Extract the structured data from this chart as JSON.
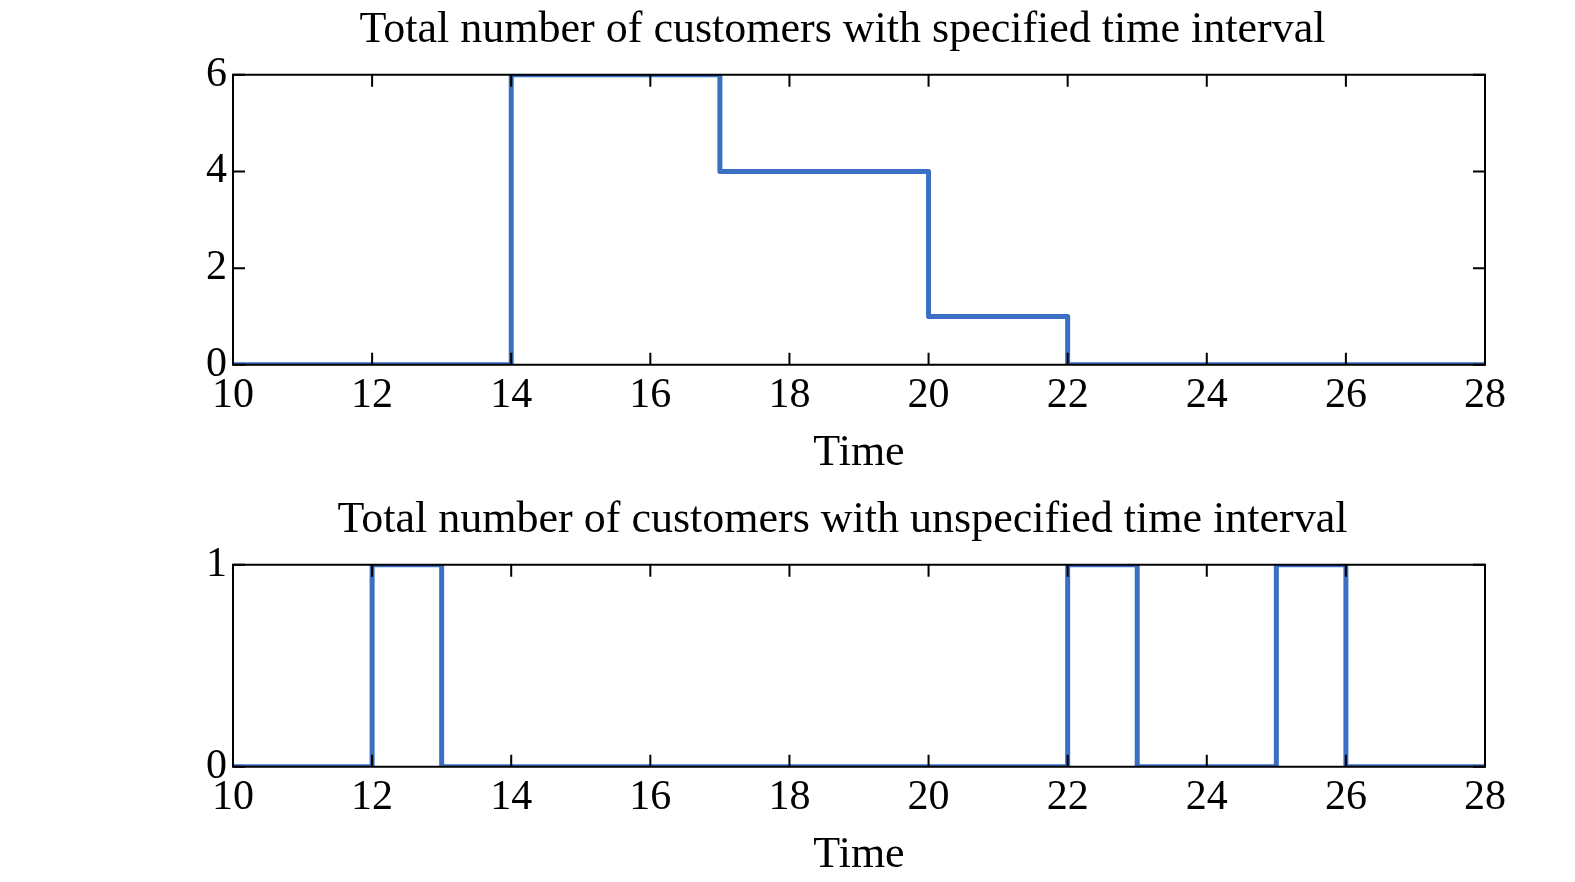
{
  "chart_data": [
    {
      "type": "step",
      "title": "Total number of customers with specified time interval",
      "xlabel": "Time",
      "x": [
        10,
        14,
        17,
        20,
        22,
        28
      ],
      "series": [
        {
          "color": "#3a6fc4",
          "values": [
            0,
            6,
            4,
            1,
            0,
            0
          ]
        }
      ],
      "xlim": [
        10,
        28
      ],
      "xticks": [
        10,
        12,
        14,
        16,
        18,
        20,
        22,
        24,
        26,
        28
      ],
      "ylim": [
        0,
        6
      ],
      "yticks": [
        0,
        2,
        4,
        6
      ],
      "grid": false,
      "legend": false
    },
    {
      "type": "step",
      "title": "Total number of customers with unspecified time interval",
      "xlabel": "Time",
      "x": [
        10,
        12,
        13,
        22,
        23,
        25,
        26,
        28
      ],
      "series": [
        {
          "color": "#3a6fc4",
          "values": [
            0,
            1,
            0,
            1,
            0,
            1,
            0,
            0
          ]
        }
      ],
      "xlim": [
        10,
        28
      ],
      "xticks": [
        10,
        12,
        14,
        16,
        18,
        20,
        22,
        24,
        26,
        28
      ],
      "ylim": [
        0,
        1
      ],
      "yticks": [
        0,
        1
      ],
      "grid": false,
      "legend": false
    }
  ]
}
